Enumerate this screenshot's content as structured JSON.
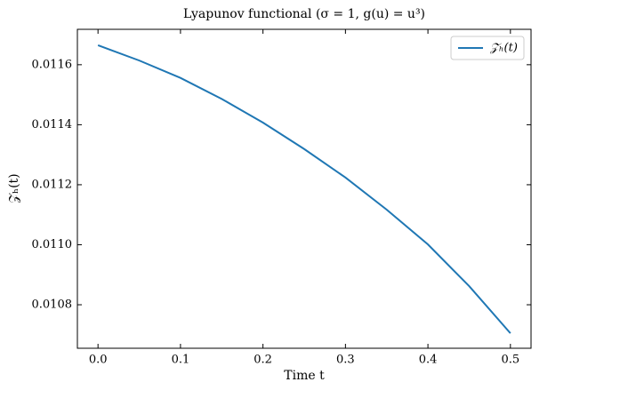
{
  "chart_data": {
    "type": "line",
    "title": "Lyapunov functional  (σ = 1, g(u) = u³)",
    "x_label": "Time t",
    "y_label": "𝒵ₕ(t)",
    "x": [
      0,
      0.05,
      0.1,
      0.15,
      0.2,
      0.25,
      0.3,
      0.35,
      0.4,
      0.45,
      0.5
    ],
    "series": [
      {
        "name": "𝒵ₕ(t)",
        "color": "#1f77b4",
        "values": [
          0.011665,
          0.011614,
          0.011556,
          0.011486,
          0.011407,
          0.011319,
          0.011224,
          0.011117,
          0.011001,
          0.010862,
          0.010705
        ]
      }
    ],
    "xlim": [
      -0.025,
      0.525
    ],
    "ylim": [
      0.010655,
      0.011718
    ],
    "xticks": [
      {
        "value": 0,
        "label": "0.0"
      },
      0.1,
      0.2,
      0.3,
      0.4,
      0.5
    ],
    "yticks": [
      0.0108,
      {
        "value": 0.011,
        "label": "0.0110"
      },
      0.0112,
      0.0114,
      0.0116
    ],
    "grid": false,
    "legend": "upper right"
  }
}
